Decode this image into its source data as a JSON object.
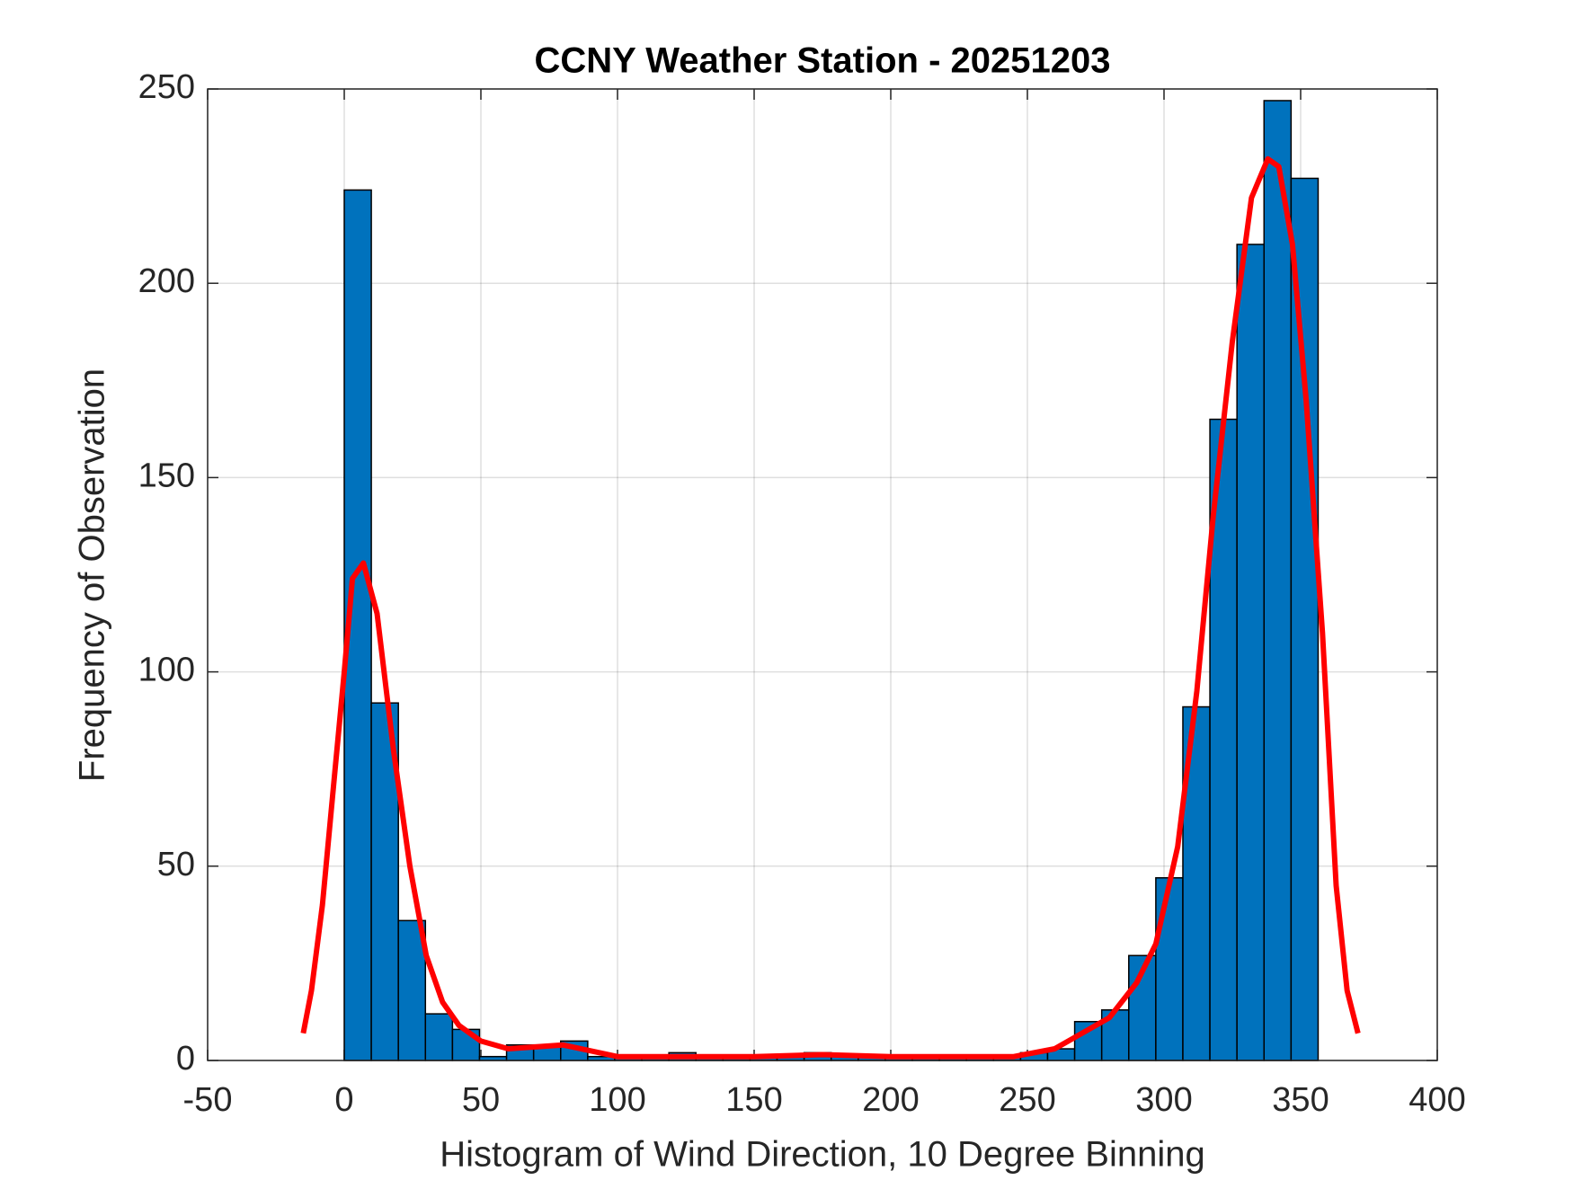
{
  "chart_data": {
    "type": "histogram",
    "title": "CCNY Weather Station - 20251203",
    "x_label": "Histogram of Wind Direction, 10 Degree Binning",
    "y_label": "Frequency of Observation",
    "bins": [
      0,
      9.9,
      19.8,
      29.7,
      39.6,
      49.5,
      59.4,
      69.3,
      79.2,
      89.1,
      99,
      108.9,
      118.8,
      128.7,
      138.6,
      148.5,
      158.4,
      168.3,
      178.2,
      188.1,
      198,
      207.9,
      217.8,
      227.7,
      237.6,
      247.5,
      257.4,
      267.3,
      277.2,
      287.1,
      297,
      306.9,
      316.8,
      326.7,
      336.6,
      346.5,
      356.4
    ],
    "values": [
      224,
      92,
      36,
      12,
      8,
      1,
      4,
      4,
      5,
      1,
      1,
      1,
      2,
      1,
      1,
      1,
      1,
      2,
      1,
      1,
      1,
      1,
      1,
      1,
      1,
      2,
      3,
      10,
      13,
      27,
      47,
      91,
      165,
      210,
      247,
      227
    ],
    "color": "#0072bd",
    "curve": {
      "color": "#ff0000",
      "x": [
        -15,
        -12,
        -8,
        -4,
        0,
        3,
        7,
        12,
        18,
        24,
        30,
        36,
        42,
        50,
        60,
        80,
        100,
        120,
        150,
        175,
        200,
        220,
        245,
        260,
        270,
        280,
        290,
        297,
        305,
        312,
        318,
        325,
        332,
        338,
        342,
        347,
        352,
        358,
        363,
        367,
        371
      ],
      "y": [
        7,
        18,
        40,
        70,
        100,
        124,
        128,
        115,
        80,
        50,
        27,
        15,
        9,
        5,
        3,
        4,
        1,
        1,
        1,
        1.5,
        1,
        1,
        1,
        3,
        7,
        11,
        20,
        30,
        55,
        95,
        140,
        185,
        222,
        232,
        230,
        210,
        170,
        110,
        45,
        18,
        7
      ]
    },
    "xlim": [
      -50,
      400
    ],
    "xticks": [
      -50,
      0,
      50,
      100,
      150,
      200,
      250,
      300,
      350,
      400
    ],
    "ylim": [
      0,
      250
    ],
    "yticks": [
      0,
      50,
      100,
      150,
      200,
      250
    ],
    "grid": true
  }
}
